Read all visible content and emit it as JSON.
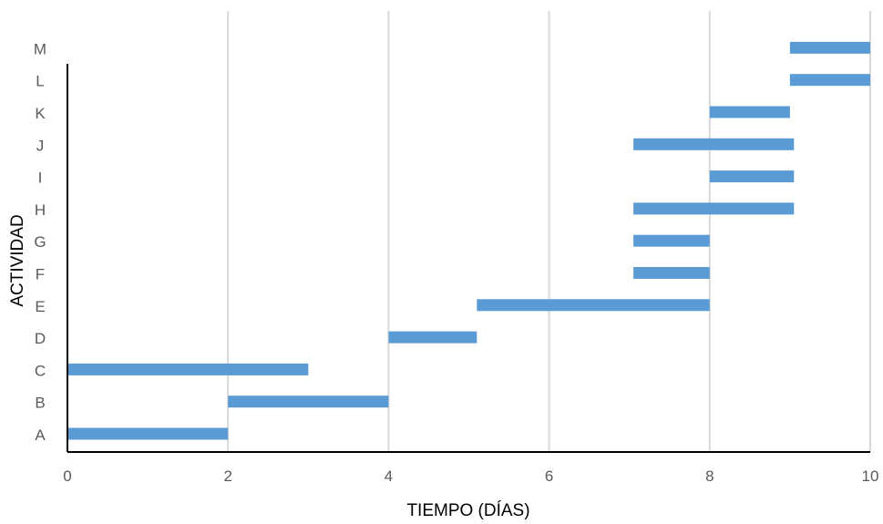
{
  "chart_data": {
    "type": "bar",
    "orientation": "horizontal-gantt",
    "xlabel": "TIEMPO (DÍAS)",
    "ylabel": "ACTIVIDAD",
    "xlim": [
      0,
      10
    ],
    "xticks": [
      "0",
      "2",
      "4",
      "6",
      "8",
      "10"
    ],
    "categories": [
      "A",
      "B",
      "C",
      "D",
      "E",
      "F",
      "G",
      "H",
      "I",
      "J",
      "K",
      "L",
      "M"
    ],
    "tasks": [
      {
        "label": "A",
        "start": 0,
        "end": 2
      },
      {
        "label": "B",
        "start": 2,
        "end": 4
      },
      {
        "label": "C",
        "start": 0,
        "end": 3
      },
      {
        "label": "D",
        "start": 4,
        "end": 5.1
      },
      {
        "label": "E",
        "start": 5.1,
        "end": 8
      },
      {
        "label": "F",
        "start": 7.05,
        "end": 8
      },
      {
        "label": "G",
        "start": 7.05,
        "end": 8
      },
      {
        "label": "H",
        "start": 7.05,
        "end": 9.05
      },
      {
        "label": "I",
        "start": 8,
        "end": 9.05
      },
      {
        "label": "J",
        "start": 7.05,
        "end": 9.05
      },
      {
        "label": "K",
        "start": 8,
        "end": 9
      },
      {
        "label": "L",
        "start": 9,
        "end": 10
      },
      {
        "label": "M",
        "start": 9,
        "end": 10
      }
    ],
    "grid": "vertical",
    "legend": "none",
    "colors": {
      "bar": "#5b9bd5",
      "grid": "#d9d9d9",
      "axis": "#000000",
      "tick_text": "#595959"
    }
  }
}
